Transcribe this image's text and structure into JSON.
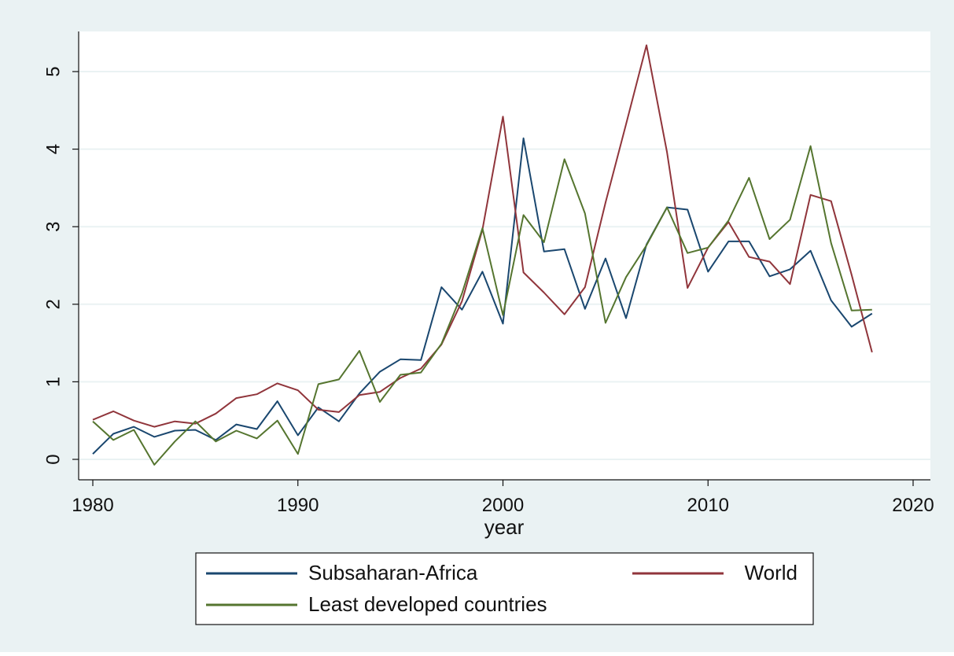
{
  "chart_data": {
    "type": "line",
    "title": "",
    "xlabel": "year",
    "ylabel": "",
    "xlim": [
      1980,
      2020
    ],
    "ylim": [
      0,
      5
    ],
    "x_ticks": [
      1980,
      1990,
      2000,
      2010,
      2020
    ],
    "y_ticks": [
      0,
      1,
      2,
      3,
      4,
      5
    ],
    "grid": true,
    "legend_position": "bottom",
    "x": [
      1980,
      1981,
      1982,
      1983,
      1984,
      1985,
      1986,
      1987,
      1988,
      1989,
      1990,
      1991,
      1992,
      1993,
      1994,
      1995,
      1996,
      1997,
      1998,
      1999,
      2000,
      2001,
      2002,
      2003,
      2004,
      2005,
      2006,
      2007,
      2008,
      2009,
      2010,
      2011,
      2012,
      2013,
      2014,
      2015,
      2016,
      2017,
      2018
    ],
    "series": [
      {
        "name": "Subsaharan-Africa",
        "color": "#1a476f",
        "values": [
          0.07,
          0.33,
          0.42,
          0.29,
          0.37,
          0.38,
          0.25,
          0.45,
          0.39,
          0.75,
          0.31,
          0.67,
          0.49,
          0.85,
          1.13,
          1.29,
          1.28,
          2.22,
          1.93,
          2.42,
          1.75,
          4.14,
          2.68,
          2.71,
          1.94,
          2.59,
          1.82,
          2.77,
          3.25,
          3.22,
          2.42,
          2.81,
          2.81,
          2.36,
          2.45,
          2.69,
          2.05,
          1.71,
          1.88
        ]
      },
      {
        "name": "World",
        "color": "#90353b",
        "values": [
          0.51,
          0.62,
          0.5,
          0.42,
          0.49,
          0.46,
          0.59,
          0.79,
          0.84,
          0.98,
          0.89,
          0.64,
          0.61,
          0.83,
          0.87,
          1.05,
          1.17,
          1.48,
          2.04,
          2.96,
          4.42,
          2.41,
          2.15,
          1.87,
          2.22,
          3.31,
          4.32,
          5.34,
          3.96,
          2.21,
          2.73,
          3.06,
          2.61,
          2.55,
          2.26,
          3.41,
          3.33,
          2.38,
          1.38
        ]
      },
      {
        "name": "Least developed countries",
        "color": "#55752f",
        "values": [
          0.49,
          0.25,
          0.38,
          -0.07,
          0.23,
          0.49,
          0.23,
          0.37,
          0.27,
          0.5,
          0.07,
          0.97,
          1.03,
          1.4,
          0.74,
          1.09,
          1.12,
          1.49,
          2.14,
          2.98,
          1.86,
          3.15,
          2.8,
          3.87,
          3.17,
          1.76,
          2.35,
          2.76,
          3.25,
          2.66,
          2.73,
          3.08,
          3.63,
          2.84,
          3.09,
          4.04,
          2.79,
          1.92,
          1.93
        ]
      }
    ]
  }
}
